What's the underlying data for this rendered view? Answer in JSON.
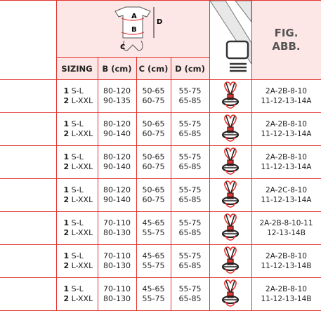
{
  "header": {
    "diagram_labels": [
      "A",
      "B",
      "C",
      "D"
    ],
    "columns": [
      "SIZING",
      "B (cm)",
      "C (cm)",
      "D (cm)"
    ],
    "fig": [
      "FIG.",
      "ABB."
    ]
  },
  "rows": [
    {
      "sizing": [
        {
          "num": "1",
          "label": "S-L"
        },
        {
          "num": "2",
          "label": "L-XXL"
        }
      ],
      "b": [
        "80-120",
        "90-135"
      ],
      "c": [
        "50-65",
        "60-75"
      ],
      "d": [
        "55-75",
        "65-85"
      ],
      "fig": [
        "2A-2B-8-10",
        "11-12-13-14A"
      ]
    },
    {
      "sizing": [
        {
          "num": "1",
          "label": "S-L"
        },
        {
          "num": "2",
          "label": "L-XXL"
        }
      ],
      "b": [
        "80-120",
        "90-140"
      ],
      "c": [
        "50-65",
        "60-75"
      ],
      "d": [
        "55-75",
        "65-85"
      ],
      "fig": [
        "2A-2B-8-10",
        "11-12-13-14A"
      ]
    },
    {
      "sizing": [
        {
          "num": "1",
          "label": "S-L"
        },
        {
          "num": "2",
          "label": "L-XXL"
        }
      ],
      "b": [
        "80-120",
        "90-140"
      ],
      "c": [
        "50-65",
        "60-75"
      ],
      "d": [
        "55-75",
        "65-85"
      ],
      "fig": [
        "2A-2B-8-10",
        "11-12-13-14A"
      ]
    },
    {
      "sizing": [
        {
          "num": "1",
          "label": "S-L"
        },
        {
          "num": "2",
          "label": "L-XXL"
        }
      ],
      "b": [
        "80-120",
        "90-140"
      ],
      "c": [
        "50-65",
        "60-75"
      ],
      "d": [
        "55-75",
        "65-85"
      ],
      "fig": [
        "2A-2C-8-10",
        "11-12-13-14A"
      ]
    },
    {
      "sizing": [
        {
          "num": "1",
          "label": "S-L"
        },
        {
          "num": "2",
          "label": "L-XXL"
        }
      ],
      "b": [
        "70-110",
        "80-130"
      ],
      "c": [
        "45-65",
        "55-75"
      ],
      "d": [
        "55-75",
        "65-85"
      ],
      "fig": [
        "2A-2B-8-10-11",
        "12-13-14B"
      ]
    },
    {
      "sizing": [
        {
          "num": "1",
          "label": "S-L"
        },
        {
          "num": "2",
          "label": "L-XXL"
        }
      ],
      "b": [
        "70-110",
        "80-130"
      ],
      "c": [
        "45-65",
        "55-75"
      ],
      "d": [
        "55-75",
        "65-85"
      ],
      "fig": [
        "2A-2B-8-10",
        "11-12-13-14B"
      ]
    },
    {
      "sizing": [
        {
          "num": "1",
          "label": "S-L"
        },
        {
          "num": "2",
          "label": "L-XXL"
        }
      ],
      "b": [
        "70-110",
        "80-130"
      ],
      "c": [
        "45-65",
        "55-75"
      ],
      "d": [
        "55-75",
        "65-85"
      ],
      "fig": [
        "2A-2B-8-10",
        "11-12-13-14B"
      ]
    }
  ]
}
